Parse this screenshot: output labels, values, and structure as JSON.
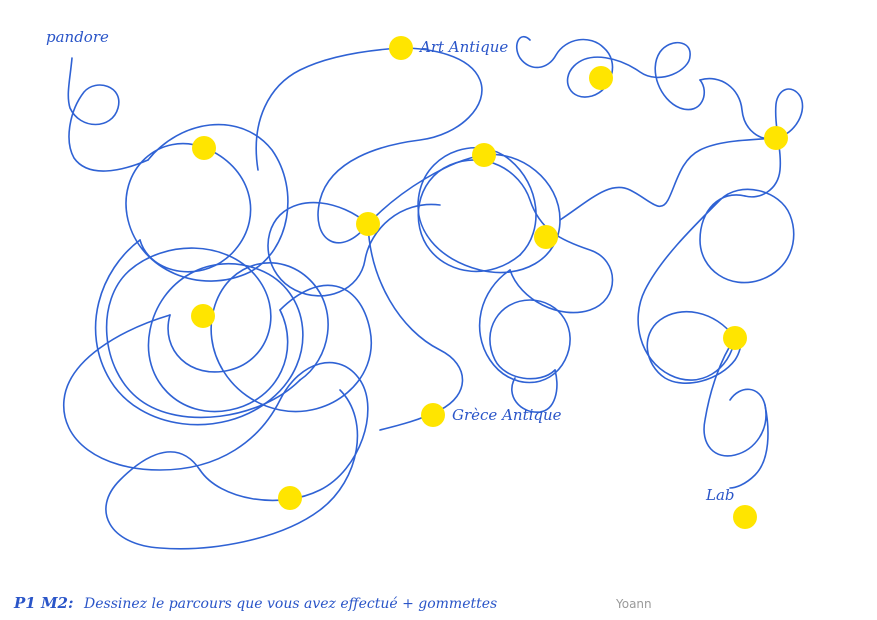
{
  "labels": {
    "start": "pandore",
    "art_antique": "Art Antique",
    "grece_antique": "Grèce Antique",
    "end": "Lab",
    "instruction_prefix": "P1 M2:",
    "instruction_text": "Dessinez le parcours que vous avez effectué + gommettes",
    "author": "Yoann"
  },
  "colors": {
    "ink": "#2f62d4",
    "sticker": "#ffe500",
    "paper": "#ffffff",
    "pencil": "#9a9a9a"
  },
  "stickers": {
    "count": 13
  }
}
